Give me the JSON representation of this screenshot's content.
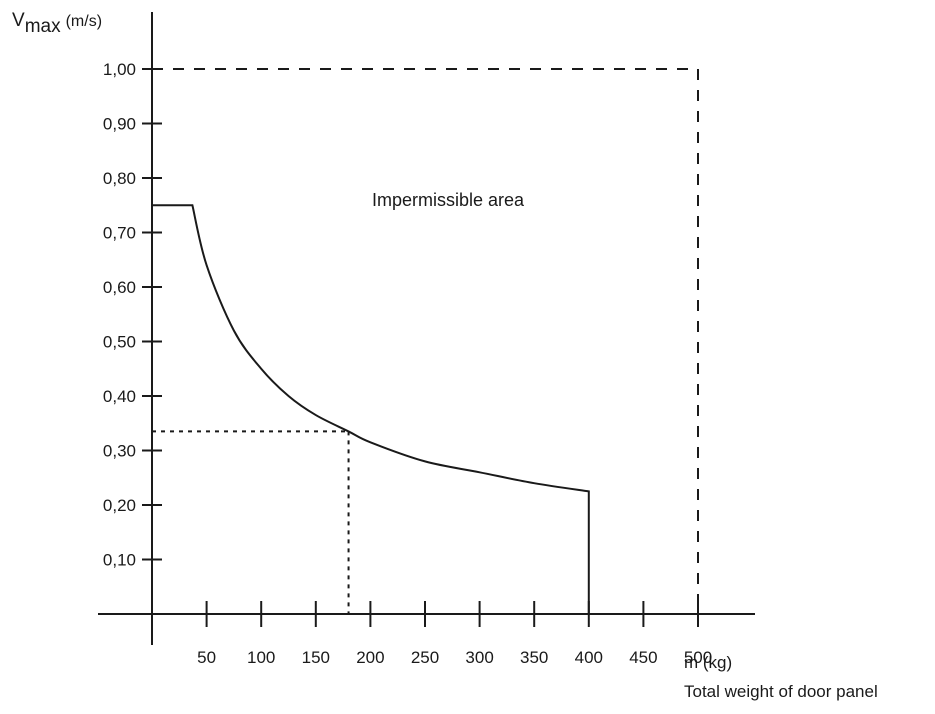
{
  "chart_data": {
    "type": "line",
    "title": "",
    "ylabel": {
      "symbol": "V",
      "subscript": "max",
      "unit": "(m/s)"
    },
    "xlabel": {
      "unit": "m (kg)",
      "caption": "Total weight of door panel"
    },
    "xlim": [
      0,
      500
    ],
    "ylim": [
      0,
      1.0
    ],
    "x_ticks": [
      50,
      100,
      150,
      200,
      250,
      300,
      350,
      400,
      450,
      500
    ],
    "y_ticks": [
      {
        "value": 0.1,
        "label": "0,10"
      },
      {
        "value": 0.2,
        "label": "0,20"
      },
      {
        "value": 0.3,
        "label": "0,30"
      },
      {
        "value": 0.4,
        "label": "0,40"
      },
      {
        "value": 0.5,
        "label": "0,50"
      },
      {
        "value": 0.6,
        "label": "0,60"
      },
      {
        "value": 0.7,
        "label": "0,70"
      },
      {
        "value": 0.8,
        "label": "0,80"
      },
      {
        "value": 0.9,
        "label": "0,90"
      },
      {
        "value": 1.0,
        "label": "1,00"
      }
    ],
    "annotation": "Impermissible area",
    "limit_curve": {
      "plateau": {
        "x_start": 0,
        "x_end": 37,
        "y": 0.75
      },
      "curve_points": [
        {
          "x": 37,
          "y": 0.75
        },
        {
          "x": 50,
          "y": 0.64
        },
        {
          "x": 75,
          "y": 0.52
        },
        {
          "x": 100,
          "y": 0.45
        },
        {
          "x": 125,
          "y": 0.4
        },
        {
          "x": 150,
          "y": 0.365
        },
        {
          "x": 180,
          "y": 0.335
        },
        {
          "x": 200,
          "y": 0.315
        },
        {
          "x": 250,
          "y": 0.28
        },
        {
          "x": 300,
          "y": 0.26
        },
        {
          "x": 350,
          "y": 0.24
        },
        {
          "x": 400,
          "y": 0.225
        }
      ],
      "drop_to_axis_at_x": 400
    },
    "example_reading": {
      "x": 180,
      "y": 0.335
    },
    "max_boundary": {
      "x": 500,
      "y": 1.0
    },
    "grid": false
  }
}
